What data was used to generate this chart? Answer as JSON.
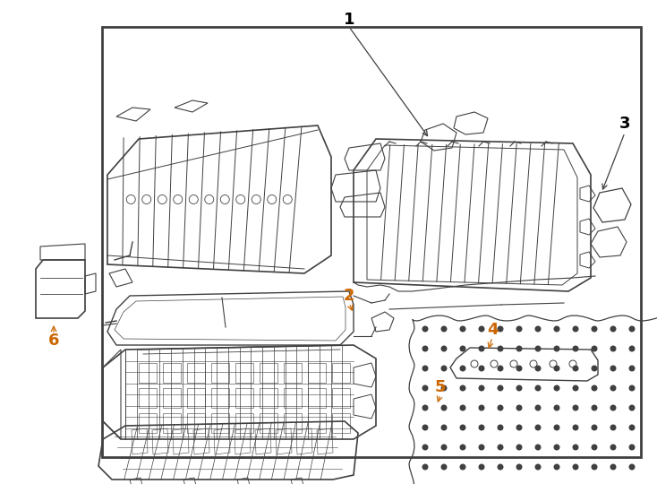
{
  "bg_color": "#ffffff",
  "border_color": "#404040",
  "line_color": "#404040",
  "label_color": "#000000",
  "orange_color": "#cc6600",
  "figsize": [
    7.34,
    5.4
  ],
  "dpi": 100,
  "border": [
    0.155,
    0.055,
    0.975,
    0.945
  ]
}
